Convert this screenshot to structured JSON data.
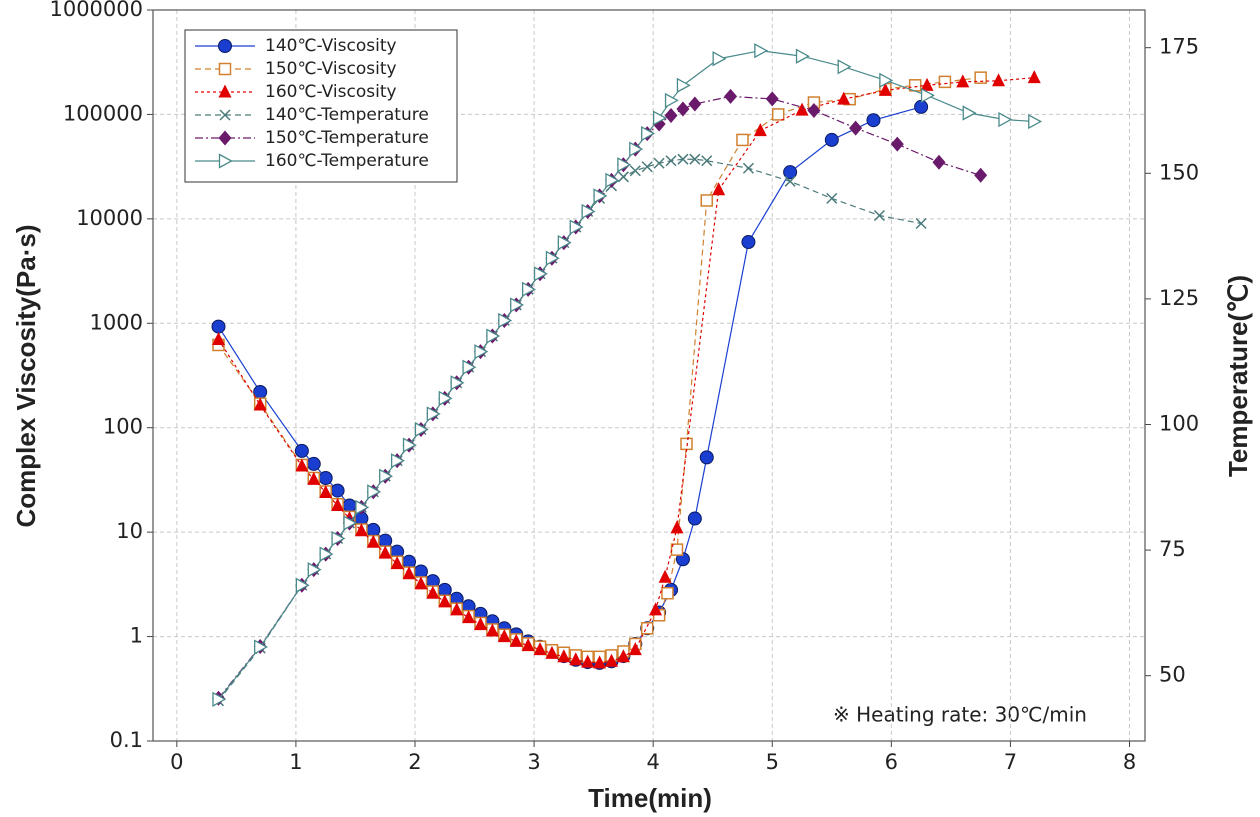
{
  "chart_data": {
    "type": "line",
    "xlabel": "Time(min)",
    "ylabel": "Complex Viscosity(Pa·s)",
    "y2label": "Temperature(℃)",
    "annotation": "※ Heating rate: 30℃/min",
    "xlim": [
      -0.2,
      8.13
    ],
    "xticks": [
      0,
      1,
      2,
      3,
      4,
      5,
      6,
      7,
      8
    ],
    "ylim": [
      0.1,
      1000000
    ],
    "yticks": [
      0.1,
      1,
      10,
      100,
      1000,
      10000,
      100000,
      1000000
    ],
    "yscale": "log",
    "y2lim": [
      37,
      182.5
    ],
    "y2ticks": [
      50,
      75,
      100,
      125,
      150,
      175
    ],
    "grid": true,
    "legend": "upper left",
    "series": [
      {
        "name": "140℃-Viscosity",
        "color": "#1a3fd0",
        "marker": "circle",
        "dash": "solid",
        "x": [
          0.35,
          0.7,
          1.05,
          1.15,
          1.25,
          1.35,
          1.45,
          1.55,
          1.65,
          1.75,
          1.85,
          1.95,
          2.05,
          2.15,
          2.25,
          2.35,
          2.45,
          2.55,
          2.65,
          2.75,
          2.85,
          2.95,
          3.05,
          3.15,
          3.25,
          3.35,
          3.45,
          3.55,
          3.65,
          3.75,
          3.85,
          3.95,
          4.05,
          4.15,
          4.25,
          4.35,
          4.45,
          4.8,
          5.15,
          5.5,
          5.85,
          6.25
        ],
        "values": [
          930,
          220,
          60,
          45,
          33,
          25,
          18,
          13.5,
          10.5,
          8.3,
          6.5,
          5.2,
          4.2,
          3.4,
          2.8,
          2.3,
          1.95,
          1.65,
          1.4,
          1.2,
          1.05,
          0.9,
          0.8,
          0.72,
          0.65,
          0.6,
          0.57,
          0.56,
          0.58,
          0.65,
          0.85,
          1.2,
          1.7,
          2.8,
          5.5,
          13.5,
          52,
          6000,
          28000,
          57000,
          88000,
          118000
        ]
      },
      {
        "name": "150℃-Viscosity",
        "color": "#d0802e",
        "marker": "square",
        "dash": "dashed",
        "x": [
          0.35,
          0.7,
          1.05,
          1.15,
          1.25,
          1.35,
          1.45,
          1.55,
          1.65,
          1.75,
          1.85,
          1.95,
          2.05,
          2.15,
          2.25,
          2.35,
          2.45,
          2.55,
          2.65,
          2.75,
          2.85,
          2.95,
          3.05,
          3.15,
          3.25,
          3.35,
          3.45,
          3.55,
          3.65,
          3.75,
          3.85,
          3.95,
          4.05,
          4.12,
          4.2,
          4.28,
          4.45,
          4.75,
          5.05,
          5.35,
          5.65,
          5.95,
          6.2,
          6.45,
          6.75
        ],
        "values": [
          620,
          170,
          44,
          33,
          24.5,
          18.5,
          14,
          10.6,
          8.2,
          6.5,
          5.2,
          4.1,
          3.3,
          2.7,
          2.2,
          1.85,
          1.57,
          1.35,
          1.17,
          1.04,
          0.94,
          0.86,
          0.8,
          0.74,
          0.7,
          0.66,
          0.64,
          0.64,
          0.66,
          0.72,
          0.85,
          1.2,
          1.6,
          2.6,
          6.8,
          70,
          15000,
          57000,
          100000,
          130000,
          140000,
          175000,
          190000,
          205000,
          225000
        ]
      },
      {
        "name": "160℃-Viscosity",
        "color": "#e00000",
        "marker": "triangle",
        "dash": "dotted",
        "x": [
          0.35,
          0.7,
          1.05,
          1.15,
          1.25,
          1.35,
          1.45,
          1.55,
          1.65,
          1.75,
          1.85,
          1.95,
          2.05,
          2.15,
          2.25,
          2.35,
          2.45,
          2.55,
          2.65,
          2.75,
          2.85,
          2.95,
          3.05,
          3.15,
          3.25,
          3.35,
          3.45,
          3.55,
          3.65,
          3.75,
          3.85,
          4.02,
          4.1,
          4.2,
          4.55,
          4.9,
          5.25,
          5.6,
          5.95,
          6.3,
          6.6,
          6.9,
          7.2
        ],
        "values": [
          700,
          165,
          43,
          32,
          24,
          18,
          13.5,
          10.3,
          8,
          6.3,
          5,
          4,
          3.2,
          2.6,
          2.15,
          1.8,
          1.52,
          1.3,
          1.13,
          1,
          0.9,
          0.82,
          0.75,
          0.69,
          0.64,
          0.6,
          0.57,
          0.56,
          0.58,
          0.64,
          0.75,
          1.8,
          3.7,
          11,
          19000,
          70000,
          110000,
          140000,
          170000,
          190000,
          205000,
          210000,
          225000
        ]
      },
      {
        "name": "140℃-Temperature",
        "color": "#4a7a7a",
        "marker": "x",
        "dash": "dashed",
        "axis": "y2",
        "x": [
          0.35,
          0.7,
          1.05,
          1.15,
          1.25,
          1.35,
          1.45,
          1.55,
          1.65,
          1.75,
          1.85,
          1.95,
          2.05,
          2.15,
          2.25,
          2.35,
          2.45,
          2.55,
          2.65,
          2.75,
          2.85,
          2.95,
          3.05,
          3.15,
          3.25,
          3.35,
          3.45,
          3.55,
          3.65,
          3.75,
          3.85,
          3.95,
          4.05,
          4.15,
          4.25,
          4.35,
          4.45,
          4.8,
          5.15,
          5.5,
          5.9,
          6.25
        ],
        "values": [
          45,
          55.5,
          68,
          71.1,
          74.2,
          77.3,
          80.4,
          83.5,
          86.6,
          89.7,
          92.8,
          95.9,
          99,
          102.1,
          105.2,
          108.3,
          111.4,
          114.5,
          117.6,
          120.7,
          123.8,
          126.9,
          130,
          133.1,
          136.2,
          139.3,
          142.4,
          145,
          147.5,
          149.3,
          150.5,
          151.3,
          152,
          152.5,
          152.8,
          152.8,
          152.5,
          151,
          148.4,
          145,
          141.6,
          140
        ]
      },
      {
        "name": "150℃-Temperature",
        "color": "#6a1a6a",
        "marker": "diamond",
        "dash": "dashdot",
        "axis": "y2",
        "x": [
          0.35,
          0.7,
          1.05,
          1.15,
          1.25,
          1.35,
          1.45,
          1.55,
          1.65,
          1.75,
          1.85,
          1.95,
          2.05,
          2.15,
          2.25,
          2.35,
          2.45,
          2.55,
          2.65,
          2.75,
          2.85,
          2.95,
          3.05,
          3.15,
          3.25,
          3.35,
          3.45,
          3.55,
          3.65,
          3.75,
          3.85,
          3.95,
          4.05,
          4.15,
          4.25,
          4.35,
          4.65,
          5.0,
          5.35,
          5.7,
          6.05,
          6.4,
          6.75
        ],
        "values": [
          45.5,
          55.8,
          68,
          71.1,
          74.2,
          77.3,
          80.4,
          83.5,
          86.6,
          89.7,
          92.8,
          95.9,
          99,
          102.1,
          105.2,
          108.3,
          111.4,
          114.5,
          117.6,
          120.7,
          123.8,
          126.9,
          130,
          133.1,
          136.2,
          139.3,
          142.4,
          145.5,
          148.6,
          151.7,
          154.8,
          157.9,
          159.8,
          161.5,
          162.8,
          163.8,
          165.3,
          164.8,
          162.5,
          159,
          155.8,
          152.2,
          149.6
        ]
      },
      {
        "name": "160℃-Temperature",
        "color": "#4a8a8a",
        "marker": "tri-right",
        "dash": "solid",
        "axis": "y2",
        "x": [
          0.35,
          0.7,
          1.05,
          1.15,
          1.25,
          1.35,
          1.45,
          1.55,
          1.65,
          1.75,
          1.85,
          1.95,
          2.05,
          2.15,
          2.25,
          2.35,
          2.45,
          2.55,
          2.65,
          2.75,
          2.85,
          2.95,
          3.05,
          3.15,
          3.25,
          3.35,
          3.45,
          3.55,
          3.65,
          3.75,
          3.85,
          3.95,
          4.05,
          4.15,
          4.25,
          4.55,
          4.9,
          5.25,
          5.6,
          5.95,
          6.3,
          6.65,
          6.95,
          7.2
        ],
        "values": [
          45.3,
          55.7,
          68,
          71.1,
          74.2,
          77.3,
          80.4,
          83.5,
          86.6,
          89.7,
          92.8,
          95.9,
          99,
          102.1,
          105.2,
          108.3,
          111.4,
          114.5,
          117.6,
          120.7,
          123.8,
          126.9,
          130,
          133.1,
          136.2,
          139.3,
          142.4,
          145.5,
          148.6,
          151.7,
          154.8,
          157.9,
          161,
          164.5,
          167.5,
          172.8,
          174.4,
          173.3,
          171.2,
          168.5,
          165.5,
          162,
          160.7,
          160.3
        ]
      }
    ]
  }
}
